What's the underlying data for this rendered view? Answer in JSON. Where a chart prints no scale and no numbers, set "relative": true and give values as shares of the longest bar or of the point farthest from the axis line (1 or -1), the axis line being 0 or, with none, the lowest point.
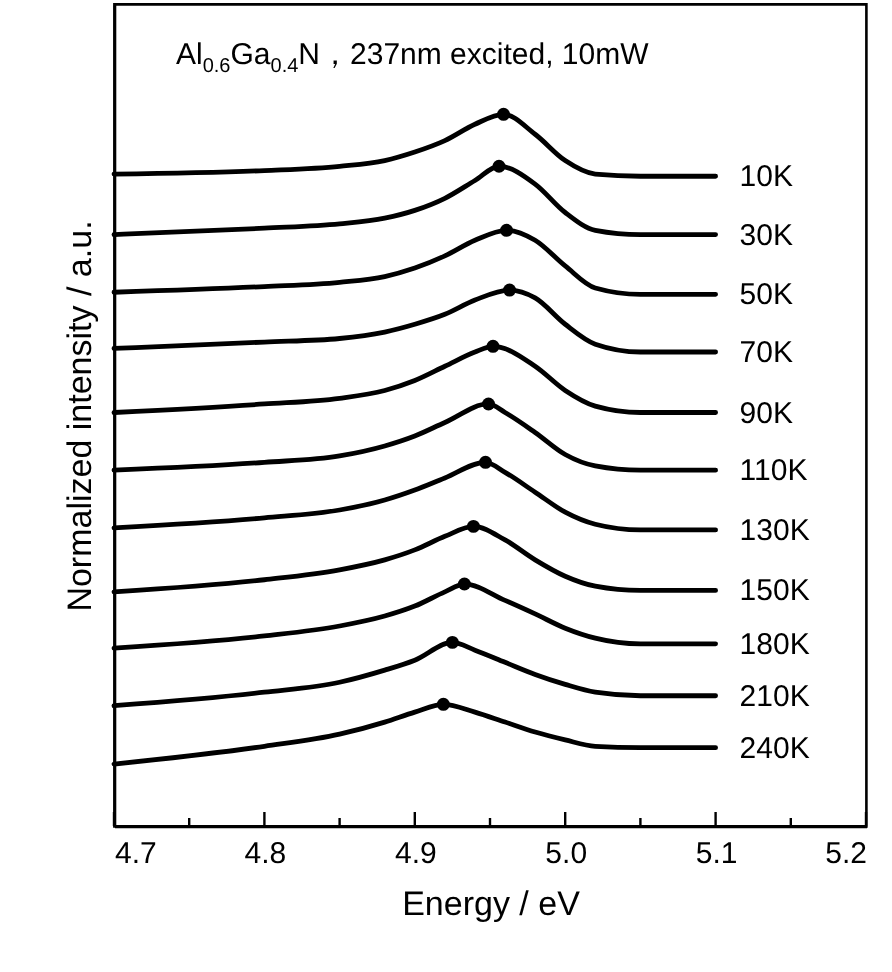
{
  "chart_data": {
    "type": "line",
    "relative": true,
    "xlabel": "Energy / eV",
    "ylabel": "Normalized intensity / a.u.",
    "annotations": [
      "Al$_{0.6}$Ga$_{0.4}$N，237nm excited, 10mW"
    ],
    "xlim": [
      4.7,
      5.2
    ],
    "xticks": [
      4.7,
      {
        "value": 4.75,
        "label": null
      },
      4.8,
      {
        "value": 4.85,
        "label": null
      },
      4.9,
      {
        "value": 4.95,
        "label": null
      },
      {
        "value": 5.0,
        "label": "5.0"
      },
      {
        "value": 5.05,
        "label": null
      },
      5.1,
      {
        "value": 5.15,
        "label": null
      },
      5.2
    ],
    "series": [
      {
        "name": "10K",
        "color": "#000000",
        "x": [
          4.7,
          4.8,
          4.85,
          4.88,
          4.9,
          4.92,
          4.94,
          4.959,
          4.98,
          5.0,
          5.02,
          5.05,
          5.1
        ],
        "values": [
          0.916,
          0.921,
          0.927,
          0.935,
          0.947,
          0.963,
          0.986,
          1.0,
          0.972,
          0.935,
          0.916,
          0.913,
          0.913
        ]
      },
      {
        "name": "30K",
        "color": "#000000",
        "x": [
          4.7,
          4.8,
          4.85,
          4.88,
          4.9,
          4.92,
          4.94,
          4.956,
          4.98,
          5.0,
          5.02,
          5.05,
          5.1
        ],
        "values": [
          0.831,
          0.84,
          0.846,
          0.854,
          0.865,
          0.882,
          0.907,
          0.927,
          0.902,
          0.862,
          0.837,
          0.831,
          0.831
        ]
      },
      {
        "name": "50K",
        "color": "#000000",
        "x": [
          4.7,
          4.8,
          4.85,
          4.88,
          4.9,
          4.92,
          4.94,
          4.961,
          4.98,
          5.0,
          5.02,
          5.05,
          5.1
        ],
        "values": [
          0.75,
          0.758,
          0.764,
          0.772,
          0.784,
          0.801,
          0.823,
          0.837,
          0.823,
          0.787,
          0.756,
          0.747,
          0.747
        ]
      },
      {
        "name": "70K",
        "color": "#000000",
        "x": [
          4.7,
          4.8,
          4.85,
          4.88,
          4.9,
          4.92,
          4.94,
          4.963,
          4.98,
          5.0,
          5.02,
          5.05,
          5.1
        ],
        "values": [
          0.671,
          0.68,
          0.685,
          0.694,
          0.705,
          0.719,
          0.739,
          0.753,
          0.742,
          0.705,
          0.677,
          0.666,
          0.666
        ]
      },
      {
        "name": "90K",
        "color": "#000000",
        "x": [
          4.7,
          4.8,
          4.85,
          4.88,
          4.9,
          4.92,
          4.94,
          4.952,
          4.98,
          5.0,
          5.02,
          5.05,
          5.1
        ],
        "values": [
          0.581,
          0.593,
          0.601,
          0.612,
          0.626,
          0.646,
          0.666,
          0.674,
          0.646,
          0.612,
          0.59,
          0.581,
          0.581
        ]
      },
      {
        "name": "110K",
        "color": "#000000",
        "x": [
          4.7,
          4.8,
          4.85,
          4.88,
          4.9,
          4.92,
          4.949,
          4.96,
          4.98,
          5.0,
          5.02,
          5.05,
          5.1
        ],
        "values": [
          0.5,
          0.511,
          0.52,
          0.534,
          0.548,
          0.567,
          0.593,
          0.581,
          0.553,
          0.522,
          0.506,
          0.5,
          0.5
        ]
      },
      {
        "name": "130K",
        "color": "#000000",
        "x": [
          4.7,
          4.8,
          4.85,
          4.88,
          4.9,
          4.92,
          4.947,
          4.96,
          4.98,
          5.0,
          5.02,
          5.05,
          5.1
        ],
        "values": [
          0.419,
          0.433,
          0.444,
          0.458,
          0.472,
          0.489,
          0.511,
          0.497,
          0.469,
          0.441,
          0.424,
          0.416,
          0.416
        ]
      },
      {
        "name": "150K",
        "color": "#000000",
        "x": [
          4.7,
          4.8,
          4.85,
          4.88,
          4.9,
          4.92,
          4.939,
          4.96,
          4.98,
          5.0,
          5.02,
          5.05,
          5.1
        ],
        "values": [
          0.329,
          0.346,
          0.36,
          0.374,
          0.388,
          0.407,
          0.421,
          0.402,
          0.374,
          0.351,
          0.337,
          0.331,
          0.331
        ]
      },
      {
        "name": "180K",
        "color": "#000000",
        "x": [
          4.7,
          4.8,
          4.85,
          4.88,
          4.9,
          4.92,
          4.933,
          4.96,
          4.98,
          5.0,
          5.02,
          5.05,
          5.1
        ],
        "values": [
          0.25,
          0.267,
          0.281,
          0.295,
          0.309,
          0.329,
          0.34,
          0.317,
          0.298,
          0.278,
          0.264,
          0.256,
          0.256
        ]
      },
      {
        "name": "210K",
        "color": "#000000",
        "x": [
          4.7,
          4.8,
          4.85,
          4.88,
          4.9,
          4.925,
          4.94,
          4.96,
          4.98,
          5.0,
          5.02,
          5.05,
          5.1
        ],
        "values": [
          0.169,
          0.188,
          0.202,
          0.219,
          0.233,
          0.258,
          0.247,
          0.23,
          0.213,
          0.199,
          0.188,
          0.183,
          0.183
        ]
      },
      {
        "name": "240K",
        "color": "#000000",
        "x": [
          4.7,
          4.8,
          4.85,
          4.88,
          4.9,
          4.919,
          4.94,
          4.96,
          4.98,
          5.0,
          5.02,
          5.05,
          5.1
        ],
        "values": [
          0.087,
          0.112,
          0.129,
          0.146,
          0.16,
          0.171,
          0.16,
          0.146,
          0.132,
          0.121,
          0.112,
          0.11,
          0.11
        ]
      },
      {
        "type": "scatter",
        "marker": "circle",
        "color": "#000000",
        "x": [
          4.959,
          4.956,
          4.961,
          4.963,
          4.952,
          4.949,
          4.947,
          4.939,
          4.933,
          4.925,
          4.919
        ],
        "values": [
          1.0,
          0.927,
          0.837,
          0.753,
          0.674,
          0.593,
          0.511,
          0.421,
          0.34,
          0.258,
          0.171
        ]
      }
    ]
  }
}
